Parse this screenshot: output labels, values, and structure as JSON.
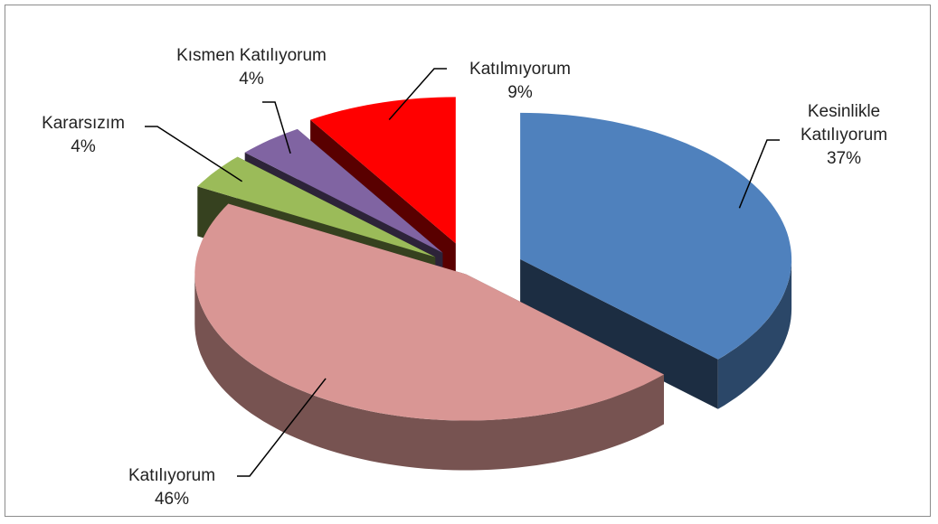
{
  "chart_data": {
    "type": "pie3d",
    "categories": [
      "Kesinlikle Katılıyorum",
      "Katılıyorum",
      "Kararsızım",
      "Kısmen Katılıyorum",
      "Katılmıyorum"
    ],
    "values": [
      37,
      46,
      4,
      4,
      9
    ],
    "value_labels": [
      "37%",
      "46%",
      "4%",
      "4%",
      "9%"
    ],
    "colors": [
      "#4f81bd",
      "#d99694",
      "#9bbb59",
      "#8064a2",
      "#ff0000"
    ]
  }
}
